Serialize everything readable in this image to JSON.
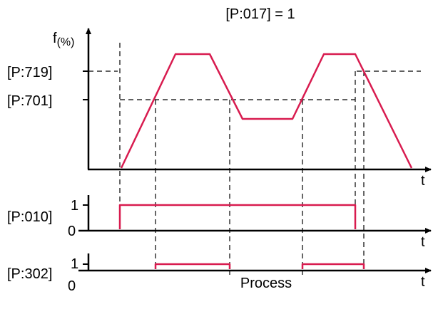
{
  "title": "[P:017] = 1",
  "top_plot": {
    "y_axis_label": "f",
    "y_axis_unit": "(%)",
    "x_axis_label": "t",
    "levels": [
      {
        "label": "[P:719]"
      },
      {
        "label": "[P:701]"
      }
    ]
  },
  "digital_plots": [
    {
      "label": "[P:010]",
      "high_label": "1",
      "low_label": "0",
      "x_axis_label": "t"
    },
    {
      "label": "[P:302]",
      "high_label": "1",
      "low_label": "0",
      "x_axis_label": "t"
    }
  ],
  "process_label": "Process",
  "colors": {
    "signal": "#d81b4f",
    "axis": "#000000"
  }
}
